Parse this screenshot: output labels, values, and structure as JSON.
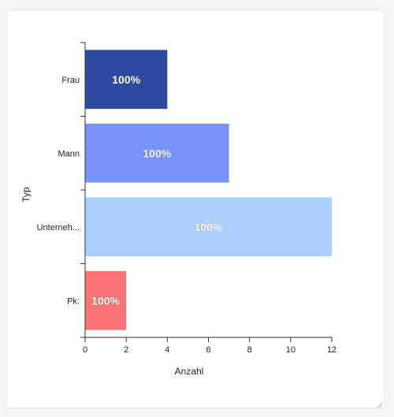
{
  "chart_data": {
    "type": "bar",
    "orientation": "horizontal",
    "categories": [
      "Frau",
      "Mann",
      "Unterneh...",
      "Pk:"
    ],
    "values": [
      4,
      7,
      12,
      2
    ],
    "bar_labels": [
      "100%",
      "100%",
      "100%",
      "100%"
    ],
    "bar_colors": [
      "#2e4a9e",
      "#7892fb",
      "#abd0fb",
      "#f87475"
    ],
    "xlabel": "Anzahl",
    "ylabel": "Typ",
    "xlim": [
      0,
      12
    ],
    "xticks": [
      0,
      2,
      4,
      6,
      8,
      10,
      12
    ],
    "grid": false,
    "legend": "none"
  },
  "colors": {
    "axis": "#333333",
    "card_bg": "#ffffff",
    "page_bg": "#f4f4f4"
  },
  "icons": {
    "resize": "resize-grip-icon"
  }
}
